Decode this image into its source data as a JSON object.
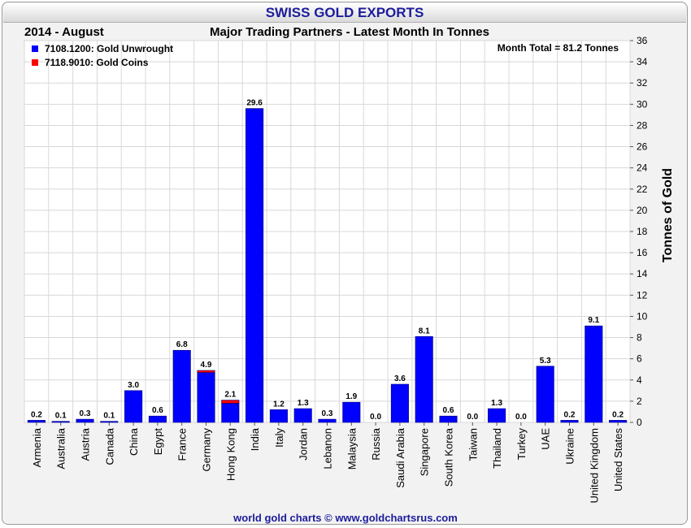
{
  "header": {
    "title": "SWISS GOLD EXPORTS",
    "period": "2014 - August",
    "subtitle": "Major Trading Partners - Latest Month In Tonnes"
  },
  "footer": {
    "credit": "world gold charts © www.goldchartsrus.com"
  },
  "chart_data": {
    "type": "bar",
    "stacked": true,
    "title": "Major Trading Partners - Latest Month In Tonnes",
    "ylabel": "Tonnes of Gold",
    "ylim": [
      0,
      36
    ],
    "ytick_step": 2,
    "grid": true,
    "legend_position": "top-left",
    "annotation": "Month Total = 81.2 Tonnes",
    "categories": [
      "Armenia",
      "Australia",
      "Austria",
      "Canada",
      "China",
      "Egypt",
      "France",
      "Germany",
      "Hong Kong",
      "India",
      "Italy",
      "Jordan",
      "Lebanon",
      "Malaysia",
      "Russia",
      "Saudi Arabia",
      "Singapore",
      "South Korea",
      "Taiwan",
      "Thailand",
      "Turkey",
      "UAE",
      "Ukraine",
      "United Kingdom",
      "United States"
    ],
    "series": [
      {
        "name": "7108.1200: Gold Unwrought",
        "color": "#0000ff",
        "values": [
          0.2,
          0.1,
          0.3,
          0.1,
          3.0,
          0.6,
          6.8,
          4.7,
          1.8,
          29.6,
          1.2,
          1.3,
          0.3,
          1.9,
          0.0,
          3.6,
          8.1,
          0.6,
          0.0,
          1.3,
          0.0,
          5.3,
          0.2,
          9.1,
          0.2
        ]
      },
      {
        "name": "7118.9010: Gold Coins",
        "color": "#ff0000",
        "values": [
          0,
          0,
          0,
          0,
          0,
          0,
          0,
          0.2,
          0.3,
          0,
          0,
          0,
          0,
          0,
          0,
          0,
          0,
          0,
          0,
          0,
          0,
          0,
          0,
          0,
          0
        ]
      }
    ],
    "totals": [
      "0.2",
      "0.1",
      "0.3",
      "0.1",
      "3.0",
      "0.6",
      "6.8",
      "4.9",
      "2.1",
      "29.6",
      "1.2",
      "1.3",
      "0.3",
      "1.9",
      "0.0",
      "3.6",
      "8.1",
      "0.6",
      "0.0",
      "1.3",
      "0.0",
      "5.3",
      "0.2",
      "9.1",
      "0.2"
    ]
  }
}
